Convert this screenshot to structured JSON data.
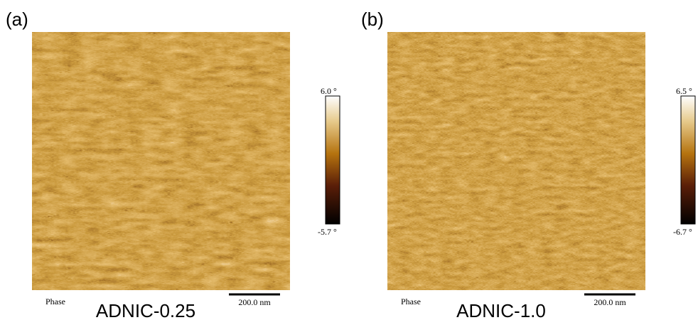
{
  "panels": [
    {
      "label": "(a)",
      "caption": "ADNIC-0.25",
      "channel": "Phase",
      "scale_bar": "200.0 nm",
      "colorbar": {
        "max": "6.0 °",
        "min": "-5.7 °"
      }
    },
    {
      "label": "(b)",
      "caption": "ADNIC-1.0",
      "channel": "Phase",
      "scale_bar": "200.0 nm",
      "colorbar": {
        "max": "6.5 °",
        "min": "-6.7 °"
      }
    }
  ]
}
